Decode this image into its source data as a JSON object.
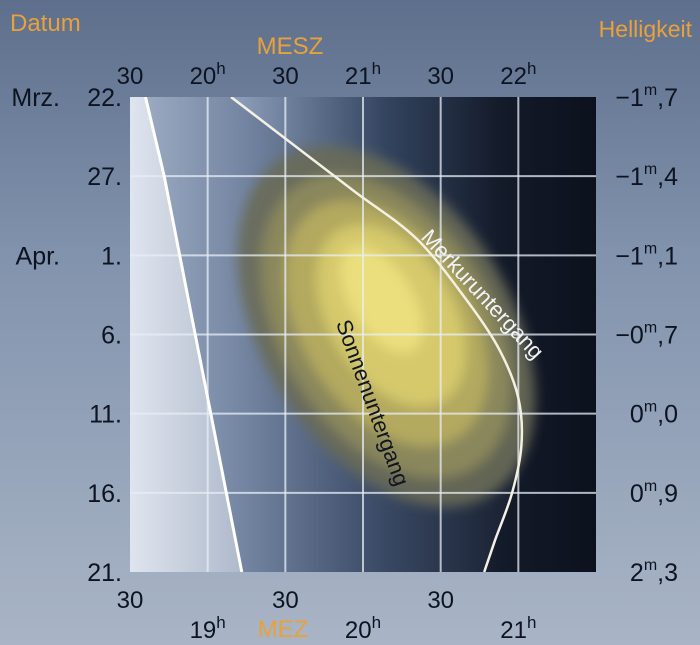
{
  "chart_data": {
    "type": "heatmap",
    "corner_labels": {
      "date": "Datum",
      "brightness": "Helligkeit"
    },
    "top_axis": {
      "label": "MESZ",
      "ticks": [
        {
          "t": 19.5,
          "text": "30",
          "sup": ""
        },
        {
          "t": 20.0,
          "text": "20",
          "sup": "h"
        },
        {
          "t": 20.5,
          "text": "30",
          "sup": ""
        },
        {
          "t": 21.0,
          "text": "21",
          "sup": "h"
        },
        {
          "t": 21.5,
          "text": "30",
          "sup": ""
        },
        {
          "t": 22.0,
          "text": "22",
          "sup": "h"
        }
      ]
    },
    "bottom_axis": {
      "label": "MEZ",
      "ticks": [
        {
          "t": 18.5,
          "text": "30",
          "sup": ""
        },
        {
          "t": 19.0,
          "text": "19",
          "sup": "h"
        },
        {
          "t": 19.5,
          "text": "30",
          "sup": ""
        },
        {
          "t": 20.0,
          "text": "20",
          "sup": "h"
        },
        {
          "t": 20.5,
          "text": "30",
          "sup": ""
        },
        {
          "t": 21.0,
          "text": "21",
          "sup": "h"
        }
      ],
      "range": [
        18.5,
        21.5
      ]
    },
    "left_axis": {
      "ticks": [
        {
          "d": 0,
          "month": "Mrz.",
          "day": "22."
        },
        {
          "d": 5,
          "month": "",
          "day": "27."
        },
        {
          "d": 10,
          "month": "Apr.",
          "day": "1."
        },
        {
          "d": 15,
          "month": "",
          "day": "6."
        },
        {
          "d": 20,
          "month": "",
          "day": "11."
        },
        {
          "d": 25,
          "month": "",
          "day": "16."
        },
        {
          "d": 30,
          "month": "",
          "day": "21."
        }
      ],
      "range": [
        0,
        30
      ]
    },
    "right_axis": {
      "ticks": [
        {
          "d": 0,
          "a": "−1",
          "b": "7"
        },
        {
          "d": 5,
          "a": "−1",
          "b": "4"
        },
        {
          "d": 10,
          "a": "−1",
          "b": "1"
        },
        {
          "d": 15,
          "a": "−0",
          "b": "7"
        },
        {
          "d": 20,
          "a": "0",
          "b": "0"
        },
        {
          "d": 25,
          "a": "0",
          "b": "9"
        },
        {
          "d": 30,
          "a": "2",
          "b": "3"
        }
      ]
    },
    "curves": [
      {
        "name": "Sonnenuntergang",
        "points": [
          [
            18.6,
            0
          ],
          [
            18.72,
            5
          ],
          [
            18.82,
            10
          ],
          [
            18.92,
            15
          ],
          [
            19.02,
            20
          ],
          [
            19.12,
            25
          ],
          [
            19.22,
            30
          ]
        ]
      },
      {
        "name": "Merkuruntergang",
        "points": [
          [
            19.15,
            0
          ],
          [
            19.55,
            3
          ],
          [
            19.95,
            6
          ],
          [
            20.35,
            9
          ],
          [
            20.68,
            13
          ],
          [
            20.88,
            16
          ],
          [
            21.0,
            19
          ],
          [
            21.02,
            22
          ],
          [
            20.96,
            25
          ],
          [
            20.85,
            28
          ],
          [
            20.78,
            30
          ]
        ]
      }
    ],
    "visibility_zones": [
      {
        "level": 1,
        "color": "#6a6c58",
        "center": [
          20.15,
          14.5
        ],
        "radii": [
          0.8,
          12.5
        ],
        "rotate": -32
      },
      {
        "level": 2,
        "color": "#8f8c5c",
        "center": [
          20.15,
          14.5
        ],
        "radii": [
          0.68,
          10.5
        ],
        "rotate": -32
      },
      {
        "level": 3,
        "color": "#b7ad5f",
        "center": [
          20.15,
          14.3
        ],
        "radii": [
          0.55,
          8.5
        ],
        "rotate": -32
      },
      {
        "level": 4,
        "color": "#d8cc6e",
        "center": [
          20.18,
          13.8
        ],
        "radii": [
          0.4,
          6.3
        ],
        "rotate": -32
      },
      {
        "level": 5,
        "color": "#ece07f",
        "center": [
          20.12,
          12.8
        ],
        "radii": [
          0.2,
          3.8
        ],
        "rotate": -32
      }
    ],
    "gridlines": {
      "x": [
        19.0,
        19.5,
        20.0,
        20.5,
        21.0
      ],
      "y": [
        5,
        10,
        15,
        20,
        25
      ]
    }
  }
}
